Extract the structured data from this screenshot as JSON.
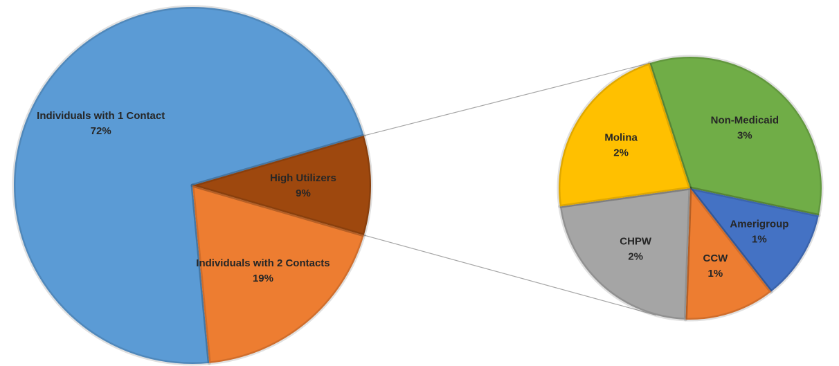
{
  "chart_data": [
    {
      "type": "pie",
      "categories": [
        "Individuals with 1 Contact",
        "Individuals with 2 Contacts",
        "High Utilizers"
      ],
      "values": [
        72,
        19,
        9
      ],
      "value_labels": [
        "72%",
        "19%",
        "9%"
      ],
      "colors": [
        "#5b9bd5",
        "#ed7d31",
        "#9e480e"
      ]
    },
    {
      "type": "pie",
      "categories": [
        "Non-Medicaid",
        "Amerigroup",
        "CCW",
        "CHPW",
        "Molina"
      ],
      "values": [
        3,
        1,
        1,
        2,
        2
      ],
      "value_labels": [
        "3%",
        "1%",
        "1%",
        "2%",
        "2%"
      ],
      "colors": [
        "#70ad47",
        "#4472c4",
        "#ed7d31",
        "#a5a5a5",
        "#ffc000"
      ]
    }
  ]
}
